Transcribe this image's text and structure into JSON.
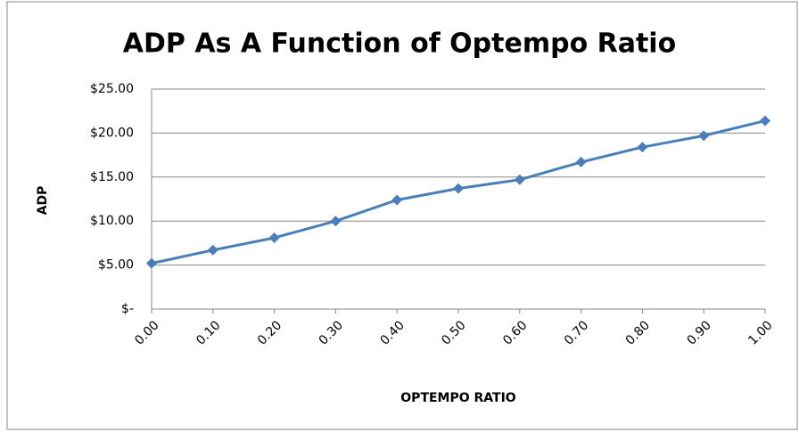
{
  "chart_data": {
    "type": "line",
    "title": "ADP As A Function of Optempo Ratio",
    "x_label": "OPTEMPO RATIO",
    "y_label": "ADP",
    "categories": [
      "0.00",
      "0.10",
      "0.20",
      "0.30",
      "0.40",
      "0.50",
      "0.60",
      "0.70",
      "0.80",
      "0.90",
      "1.00"
    ],
    "series": [
      {
        "name": "ADP",
        "color": "#4a7ebb",
        "values": [
          5.2,
          6.7,
          8.1,
          10.0,
          12.4,
          13.7,
          14.7,
          16.7,
          18.4,
          19.7,
          21.4
        ]
      }
    ],
    "ylim": [
      0,
      25
    ],
    "yticks": [
      {
        "value": 0,
        "label": "$-"
      },
      {
        "value": 5,
        "label": "$5.00"
      },
      {
        "value": 10,
        "label": "$10.00"
      },
      {
        "value": 15,
        "label": "$15.00"
      },
      {
        "value": 20,
        "label": "$20.00"
      },
      {
        "value": 25,
        "label": "$25.00"
      }
    ],
    "grid": true
  }
}
